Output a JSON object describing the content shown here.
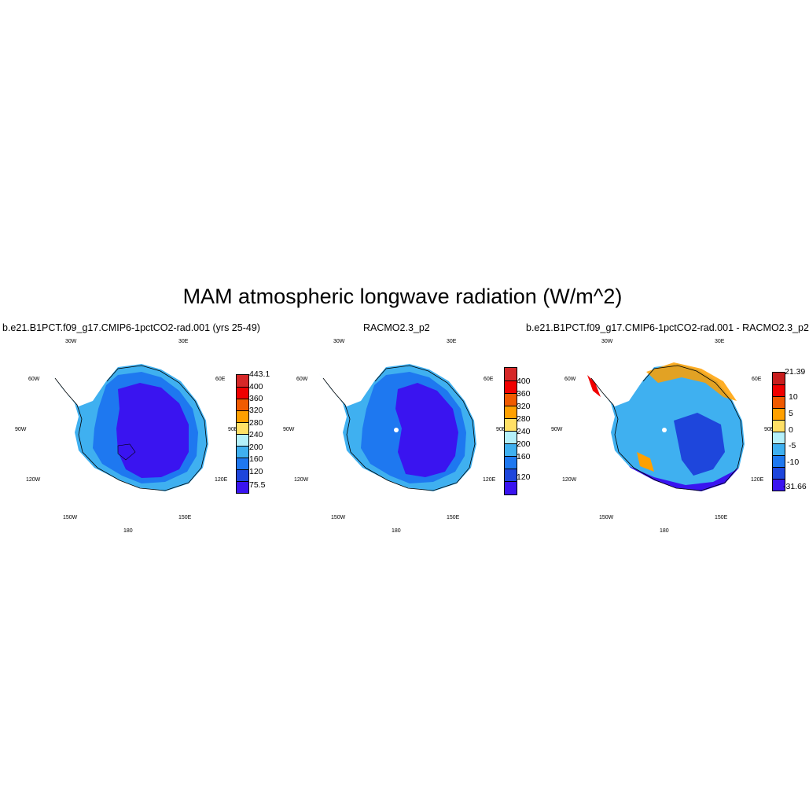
{
  "title": "MAM atmospheric longwave radiation (W/m^2)",
  "panels": [
    {
      "title": "b.e21.B1PCT.f09_g17.CMIP6-1pctCO2-rad.001 (yrs 25-49)",
      "colorbar": {
        "colors": [
          "#d62828",
          "#f00000",
          "#f05a00",
          "#ffa000",
          "#ffe066",
          "#b4f0fa",
          "#3fb0f0",
          "#1e78f0",
          "#1e46dc",
          "#3a14f0"
        ],
        "tick_labels": [
          "443.1",
          "400",
          "360",
          "320",
          "280",
          "240",
          "200",
          "160",
          "120",
          "75.5"
        ]
      }
    },
    {
      "title": "RACMO2.3_p2",
      "colorbar": {
        "colors": [
          "#d62828",
          "#f00000",
          "#f05a00",
          "#ffa000",
          "#ffe066",
          "#b4f0fa",
          "#3fb0f0",
          "#1e78f0",
          "#1e46dc",
          "#3a14f0"
        ],
        "tick_labels": [
          "400",
          "360",
          "320",
          "280",
          "240",
          "200",
          "160",
          "120"
        ]
      }
    },
    {
      "title": "b.e21.B1PCT.f09_g17.CMIP6-1pctCO2-rad.001 - RACMO2.3_p2",
      "colorbar": {
        "colors": [
          "#c81e1e",
          "#f00000",
          "#f05a00",
          "#ffa000",
          "#ffe066",
          "#b4f0fa",
          "#3fb0f0",
          "#1e78f0",
          "#1e46dc",
          "#3a14f0"
        ],
        "tick_labels": [
          "21.39",
          "10",
          "5",
          "0",
          "-5",
          "-10",
          "-31.66"
        ]
      }
    }
  ],
  "map_labels": {
    "lon_30w": "30W",
    "lon_30e": "30E",
    "lon_60w": "60W",
    "lon_60e": "60E",
    "lon_90w": "90W",
    "lon_90e": "90E",
    "lon_120w": "120W",
    "lon_120e": "120E",
    "lon_150w": "150W",
    "lon_150e": "150E",
    "lon_180": "180"
  },
  "colors": {
    "interior": "#3a14f0",
    "coast_mid": "#1e78f0",
    "coast_light": "#3fb0f0",
    "diff_base": "#3fb0f0",
    "diff_warm": "#ffa000"
  }
}
